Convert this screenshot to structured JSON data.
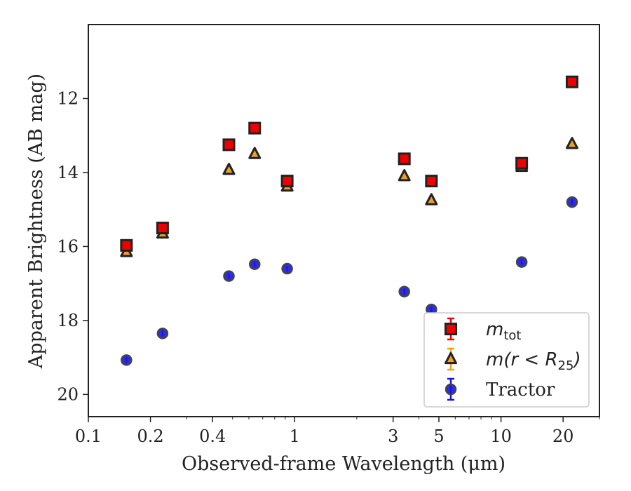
{
  "chart_data": {
    "type": "scatter",
    "xscale": "log",
    "xlim": [
      0.1,
      30
    ],
    "ylim": [
      20.6,
      10.0
    ],
    "y_inverted": true,
    "xlabel": "Observed-frame Wavelength (μm)",
    "ylabel": "Apparent Brightness (AB mag)",
    "x_ticks": [
      {
        "value": 0.1,
        "label": "0.1"
      },
      {
        "value": 0.2,
        "label": "0.2"
      },
      {
        "value": 0.4,
        "label": "0.4"
      },
      {
        "value": 1,
        "label": "1"
      },
      {
        "value": 3,
        "label": "3"
      },
      {
        "value": 5,
        "label": "5"
      },
      {
        "value": 10,
        "label": "10"
      },
      {
        "value": 20,
        "label": "20"
      }
    ],
    "y_ticks": [
      {
        "value": 12,
        "label": "12"
      },
      {
        "value": 14,
        "label": "14"
      },
      {
        "value": 16,
        "label": "16"
      },
      {
        "value": 18,
        "label": "18"
      },
      {
        "value": 20,
        "label": "20"
      }
    ],
    "legend_position": "lower-right",
    "series": [
      {
        "name": "m_tot",
        "legend": {
          "italic": "m",
          "sub": "tot"
        },
        "marker": "square",
        "color": "#ee0000",
        "edge": "#222222",
        "x": [
          0.153,
          0.229,
          0.48,
          0.64,
          0.92,
          3.4,
          4.6,
          12.6,
          22.1
        ],
        "y": [
          15.97,
          15.5,
          13.25,
          12.8,
          14.23,
          13.63,
          14.23,
          13.75,
          11.55
        ]
      },
      {
        "name": "m(r < R_25)",
        "legend": {
          "italic": "m(r < R",
          "sub": "25",
          "tail": ")"
        },
        "marker": "triangle",
        "color": "#f0a020",
        "edge": "#222222",
        "x": [
          0.153,
          0.229,
          0.48,
          0.64,
          0.92,
          3.4,
          4.6,
          12.6,
          22.1
        ],
        "y": [
          16.15,
          15.65,
          13.93,
          13.5,
          14.38,
          14.1,
          14.75,
          13.85,
          13.23
        ]
      },
      {
        "name": "Tractor",
        "legend": {
          "text": "Tractor"
        },
        "marker": "circle",
        "color": "#1515e0",
        "edge": "#444444",
        "x": [
          0.153,
          0.229,
          0.48,
          0.64,
          0.92,
          3.4,
          4.6,
          12.6,
          22.1
        ],
        "y": [
          19.07,
          18.35,
          16.8,
          16.48,
          16.6,
          17.22,
          17.7,
          16.42,
          14.8
        ]
      }
    ]
  }
}
